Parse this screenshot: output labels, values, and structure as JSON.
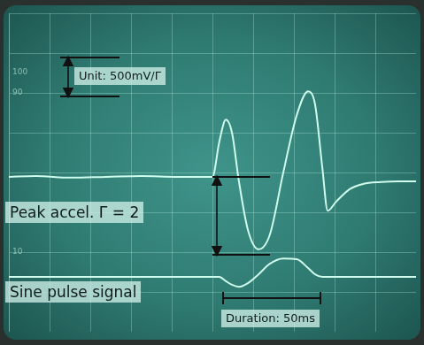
{
  "chart_data": {
    "type": "line",
    "xlim": [
      0,
      10
    ],
    "ylim": [
      -4,
      4
    ],
    "xticks": [
      0,
      1,
      2,
      3,
      4,
      5,
      6,
      7,
      8,
      9,
      10
    ],
    "yticks": [
      -4,
      -3,
      -2,
      -1,
      0,
      1,
      2,
      3,
      4
    ],
    "grid": true,
    "tick_labels": false,
    "x": [
      0,
      0.65,
      1.52,
      2.39,
      3.26,
      4.13,
      4.78,
      5.0,
      5.17,
      5.33,
      5.48,
      5.65,
      5.87,
      6.13,
      6.41,
      6.74,
      7.07,
      7.35,
      7.52,
      7.7,
      7.83,
      8.04,
      8.37,
      8.7,
      9.13,
      9.57,
      10
    ],
    "series": [
      {
        "color": "#cffcec",
        "values": [
          -0.11,
          -0.09,
          -0.13,
          -0.11,
          -0.09,
          -0.11,
          -0.11,
          -0.11,
          0.78,
          1.33,
          1.0,
          -0.22,
          -1.44,
          -1.93,
          -1.56,
          0,
          1.44,
          2.04,
          1.71,
          0.11,
          -0.96,
          -0.73,
          -0.42,
          -0.29,
          -0.24,
          -0.22,
          -0.22
        ]
      },
      {
        "name": "Sine pulse signal",
        "color": "#cffcec",
        "values": [
          -2.62,
          -2.62,
          -2.62,
          -2.62,
          -2.62,
          -2.62,
          -2.62,
          -2.62,
          -2.62,
          -2.73,
          -2.82,
          -2.87,
          -2.78,
          -2.56,
          -2.29,
          -2.16,
          -2.18,
          -2.4,
          -2.56,
          -2.62,
          -2.62,
          -2.62,
          -2.62,
          -2.62,
          -2.62,
          -2.62,
          -2.62
        ]
      }
    ],
    "graticule_labels": [
      "100",
      "90",
      "10"
    ],
    "annotations": {
      "unit": "Unit: 500mV/Γ",
      "peak": "Peak accel. Γ = 2",
      "duration": "Duration: 50ms"
    }
  }
}
